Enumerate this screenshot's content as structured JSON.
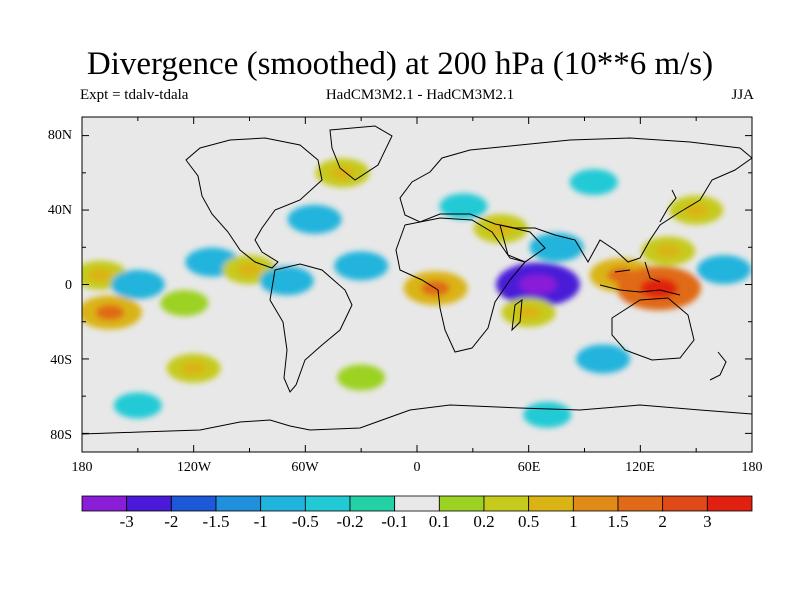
{
  "title": "Divergence (smoothed) at 200 hPa (10**6 m/s)",
  "subtitle_left": "Expt = tdalv-tdala",
  "subtitle_center": "HadCM3M2.1 - HadCM3M2.1",
  "subtitle_right": "JJA",
  "lat_labels": [
    "80N",
    "40N",
    "0",
    "40S",
    "80S"
  ],
  "lon_labels": [
    "180",
    "120W",
    "60W",
    "0",
    "60E",
    "120E",
    "180"
  ],
  "colorbar": {
    "labels": [
      "-3",
      "-2",
      "-1.5",
      "-1",
      "-0.5",
      "-0.2",
      "-0.1",
      "0.1",
      "0.2",
      "0.5",
      "1",
      "1.5",
      "2",
      "3"
    ],
    "colors": [
      "#8a1ed8",
      "#4a1ad8",
      "#1c58d8",
      "#2090dc",
      "#20b4dc",
      "#22cad6",
      "#22d2a4",
      "#e8e8e8",
      "#9cd224",
      "#c6ca1c",
      "#dab414",
      "#e08a18",
      "#e06a18",
      "#e04a18",
      "#e02010"
    ]
  },
  "chart_data": {
    "type": "heatmap",
    "title": "Divergence (smoothed) at 200 hPa (10**6 m/s)",
    "x_axis": "longitude",
    "x_range": [
      -180,
      180
    ],
    "y_axis": "latitude",
    "y_range": [
      -90,
      90
    ],
    "levels": [
      -3,
      -2,
      -1.5,
      -1,
      -0.5,
      -0.2,
      -0.1,
      0.1,
      0.2,
      0.5,
      1,
      1.5,
      2,
      3
    ],
    "features": [
      {
        "lon": -170,
        "lat": 5,
        "value": 0.5
      },
      {
        "lon": -150,
        "lat": 0,
        "value": -0.5
      },
      {
        "lon": -165,
        "lat": -15,
        "value": 1.0
      },
      {
        "lon": -125,
        "lat": -10,
        "value": 0.2
      },
      {
        "lon": -110,
        "lat": 12,
        "value": -0.5
      },
      {
        "lon": -90,
        "lat": 8,
        "value": 0.5
      },
      {
        "lon": -70,
        "lat": 2,
        "value": -0.5
      },
      {
        "lon": -55,
        "lat": 35,
        "value": -0.5
      },
      {
        "lon": -30,
        "lat": 10,
        "value": -0.5
      },
      {
        "lon": -40,
        "lat": 60,
        "value": 0.5
      },
      {
        "lon": 25,
        "lat": 42,
        "value": -0.2
      },
      {
        "lon": 10,
        "lat": -2,
        "value": 1.0
      },
      {
        "lon": 45,
        "lat": 30,
        "value": 0.5
      },
      {
        "lon": 65,
        "lat": 0,
        "value": -2.0
      },
      {
        "lon": 60,
        "lat": -15,
        "value": 0.5
      },
      {
        "lon": 75,
        "lat": 20,
        "value": -0.5
      },
      {
        "lon": 110,
        "lat": 5,
        "value": 1.0
      },
      {
        "lon": 130,
        "lat": -2,
        "value": 2.0
      },
      {
        "lon": 135,
        "lat": 18,
        "value": 0.5
      },
      {
        "lon": 165,
        "lat": 8,
        "value": -0.5
      },
      {
        "lon": 95,
        "lat": 55,
        "value": -0.2
      },
      {
        "lon": 150,
        "lat": 40,
        "value": 0.5
      },
      {
        "lon": -30,
        "lat": -50,
        "value": 0.2
      },
      {
        "lon": 100,
        "lat": -40,
        "value": -0.5
      },
      {
        "lon": -120,
        "lat": -45,
        "value": 0.5
      },
      {
        "lon": 70,
        "lat": -70,
        "value": -0.2
      },
      {
        "lon": -150,
        "lat": -65,
        "value": -0.2
      }
    ]
  }
}
